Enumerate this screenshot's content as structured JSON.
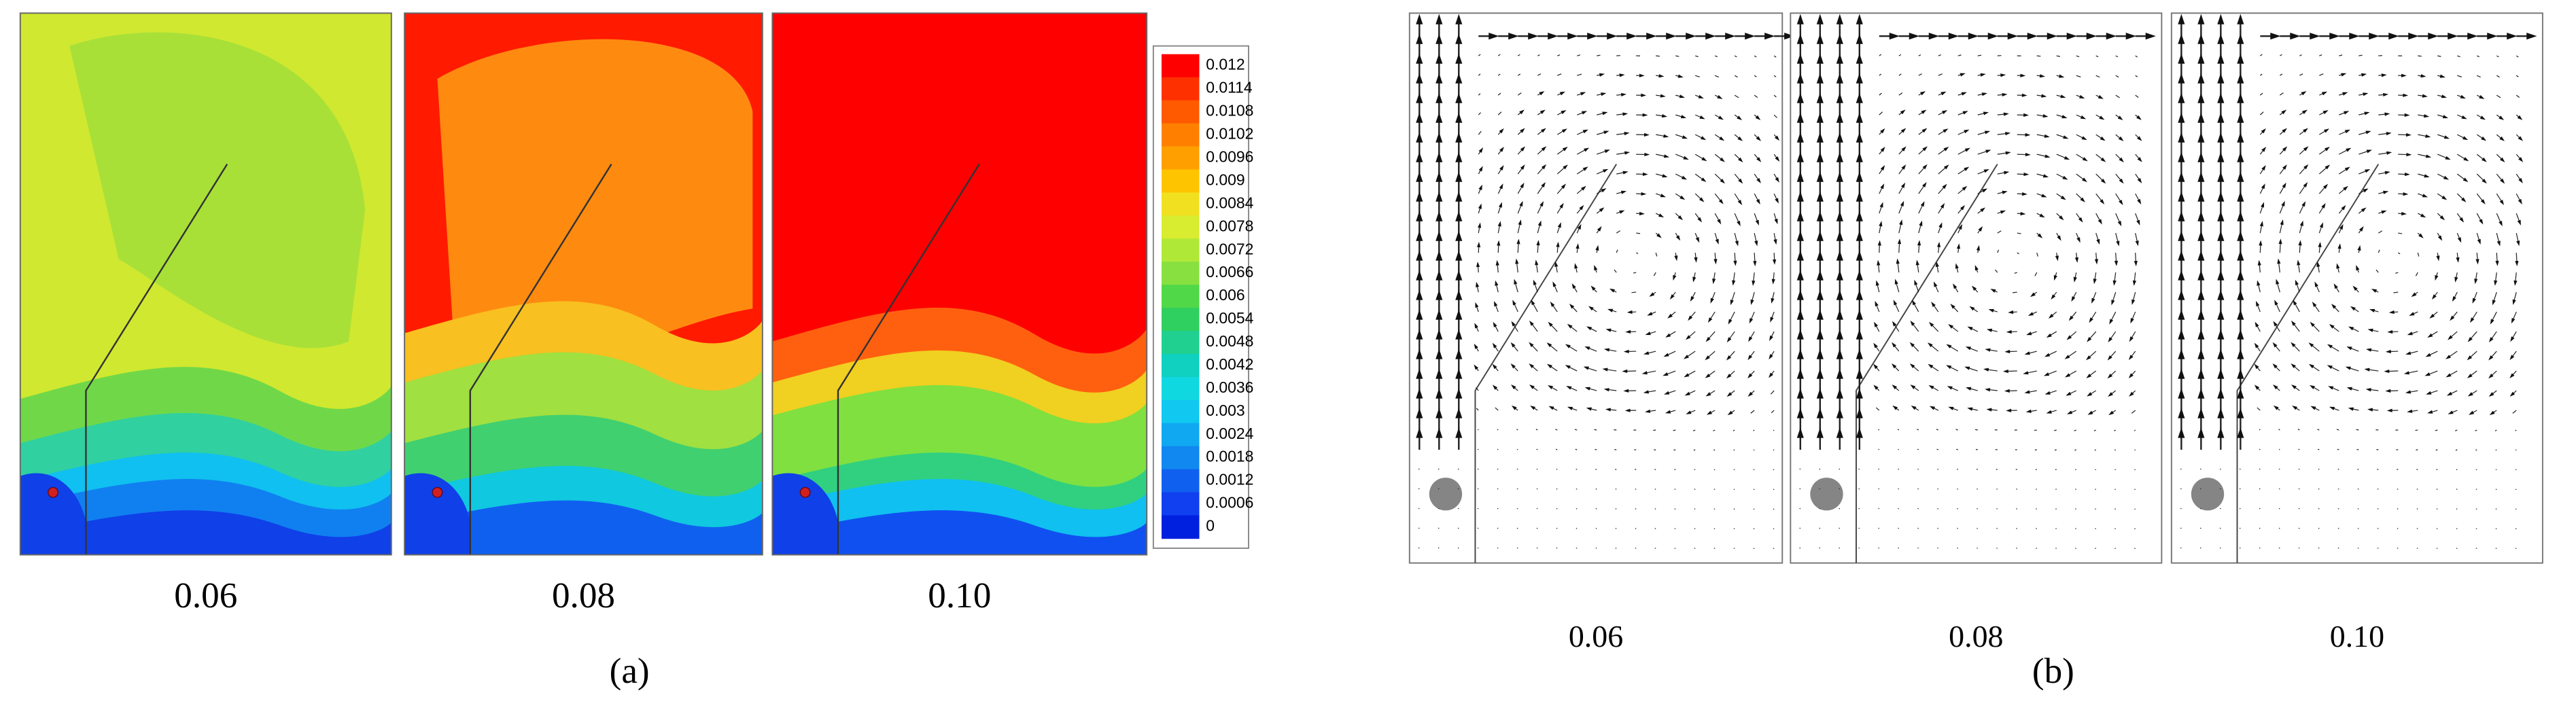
{
  "panel_a": {
    "label": "(a)",
    "subplots": [
      "0.06",
      "0.08",
      "0.10"
    ],
    "colorbar": {
      "ticks": [
        "0.012",
        "0.0114",
        "0.0108",
        "0.0102",
        "0.0096",
        "0.009",
        "0.0084",
        "0.0078",
        "0.0072",
        "0.0066",
        "0.006",
        "0.0054",
        "0.0048",
        "0.0042",
        "0.0036",
        "0.003",
        "0.0024",
        "0.0018",
        "0.0012",
        "0.0006",
        "0"
      ]
    }
  },
  "panel_b": {
    "label": "(b)",
    "subplots": [
      "0.06",
      "0.08",
      "0.10"
    ]
  }
}
